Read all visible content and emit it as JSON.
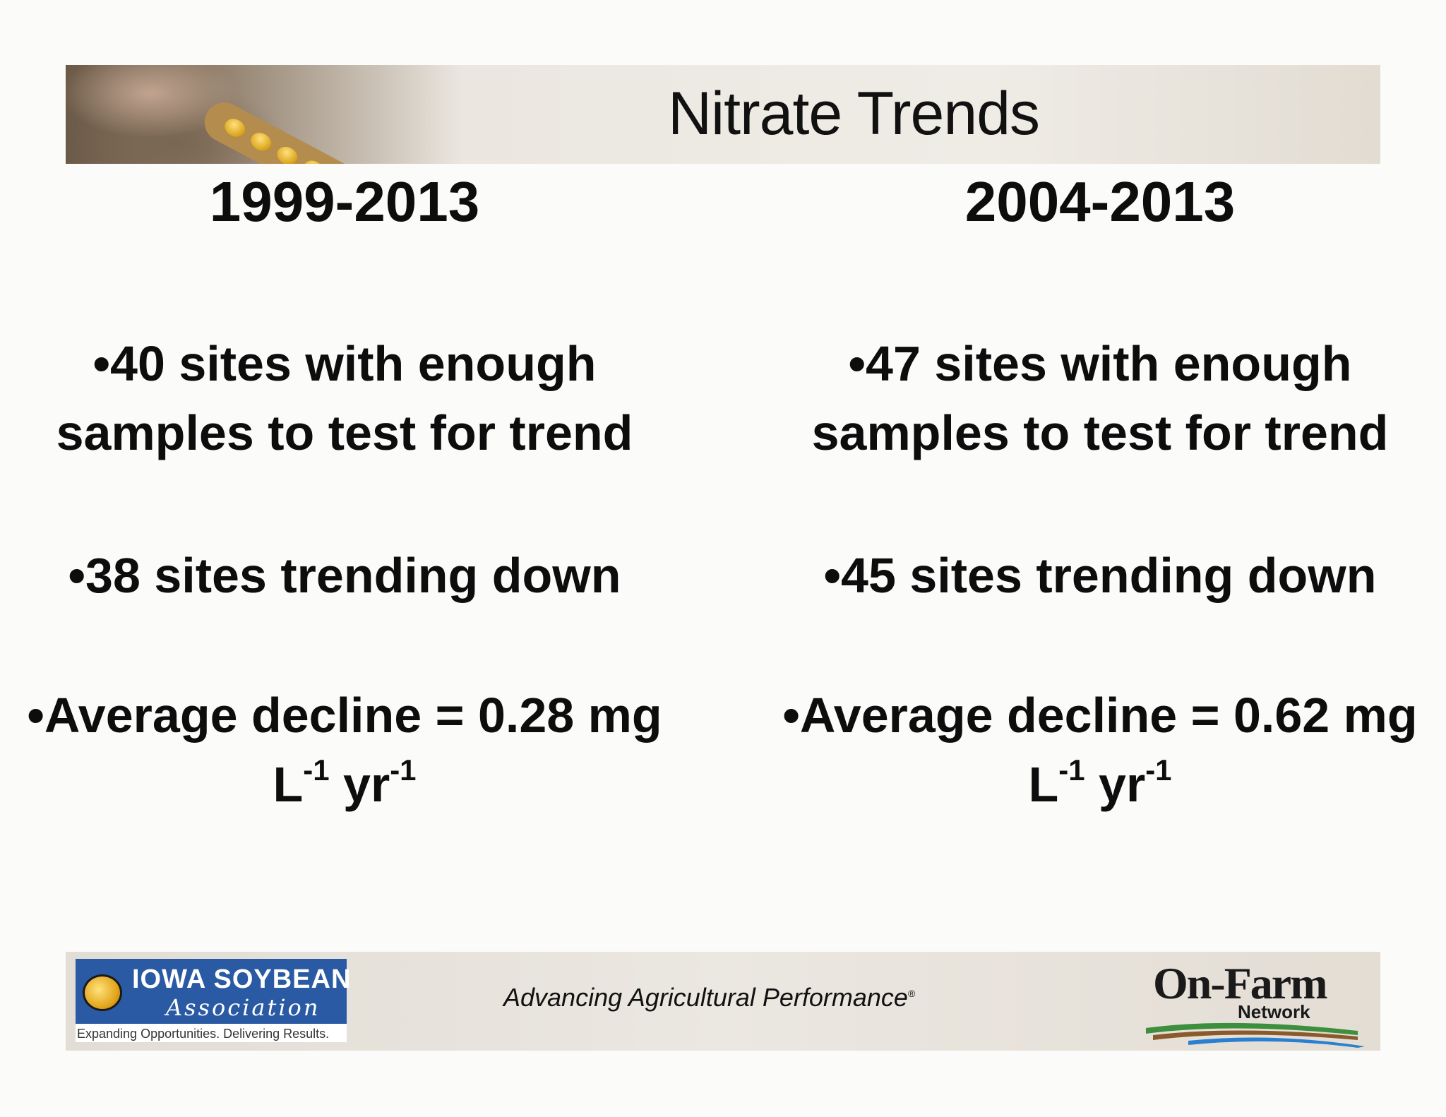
{
  "header": {
    "title": "Nitrate Trends"
  },
  "columns": [
    {
      "period": "1999-2013",
      "bullet1": "•40 sites with enough samples to test for trend",
      "bullet2": "•38 sites trending down",
      "bullet3_prefix": "•Average decline = 0.28 mg L",
      "bullet3_exp1": "-1",
      "bullet3_mid": " yr",
      "bullet3_exp2": "-1"
    },
    {
      "period": "2004-2013",
      "bullet1": "•47 sites with enough samples to test for trend",
      "bullet2": "•45 sites trending down",
      "bullet3_prefix": "•Average decline = 0.62 mg L",
      "bullet3_exp1": "-1",
      "bullet3_mid": " yr",
      "bullet3_exp2": "-1"
    }
  ],
  "footer": {
    "isa_logo": {
      "name": "IOWA SOYBEAN",
      "subname": "Association",
      "tagline": "Expanding Opportunities. Delivering Results."
    },
    "tagline": "Advancing Agricultural Performance",
    "registered_mark": "®",
    "onfarm_logo": {
      "main": "On-Farm",
      "sub": "Network"
    }
  },
  "colors": {
    "background": "#fbfbfa",
    "text": "#0d0d0d",
    "isa_blue": "#2a5aa3",
    "swoosh_green": "#3c8f3c",
    "swoosh_brown": "#8a5a2b",
    "swoosh_blue": "#2a7fd0"
  }
}
